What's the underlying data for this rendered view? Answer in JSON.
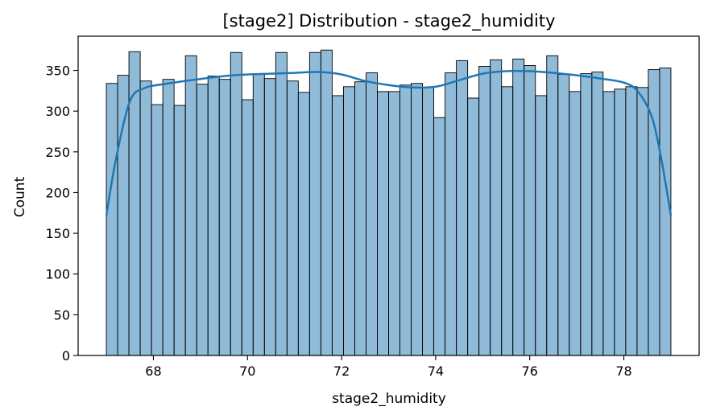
{
  "chart_data": {
    "type": "bar",
    "subtype": "histogram",
    "title": "[stage2] Distribution - stage2_humidity",
    "xlabel": "stage2_humidity",
    "ylabel": "Count",
    "xlim": [
      66.4,
      79.6
    ],
    "ylim": [
      0,
      392
    ],
    "bin_start": 67.0,
    "bin_width": 0.24,
    "x_ticks": [
      68,
      70,
      72,
      74,
      76,
      78
    ],
    "y_ticks": [
      0,
      50,
      100,
      150,
      200,
      250,
      300,
      350
    ],
    "counts": [
      334,
      344,
      373,
      337,
      308,
      339,
      307,
      368,
      333,
      343,
      339,
      372,
      314,
      346,
      340,
      372,
      337,
      323,
      372,
      375,
      319,
      330,
      336,
      347,
      324,
      324,
      332,
      334,
      329,
      292,
      347,
      362,
      316,
      355,
      363,
      330,
      364,
      356,
      319,
      368,
      345,
      324,
      346,
      348,
      324,
      327,
      330,
      329,
      351,
      353
    ],
    "kde": {
      "x": [
        67.0,
        67.2,
        67.5,
        67.8,
        68.2,
        68.8,
        69.5,
        70.0,
        70.5,
        71.0,
        71.5,
        72.0,
        72.5,
        73.0,
        73.5,
        74.0,
        74.5,
        75.0,
        75.5,
        76.0,
        76.5,
        77.0,
        77.5,
        78.0,
        78.3,
        78.6,
        78.8,
        79.0
      ],
      "y": [
        172,
        240,
        312,
        328,
        333,
        338,
        343,
        345,
        346,
        347,
        348,
        345,
        337,
        332,
        329,
        330,
        338,
        346,
        349,
        349,
        347,
        344,
        340,
        335,
        324,
        292,
        240,
        172
      ]
    },
    "colors": {
      "bar_fill": "#1f77b4",
      "bar_fill_opacity": 0.5,
      "bar_edge": "#000000",
      "kde_line": "#1f77b4"
    },
    "grid": false,
    "legend": "none"
  }
}
